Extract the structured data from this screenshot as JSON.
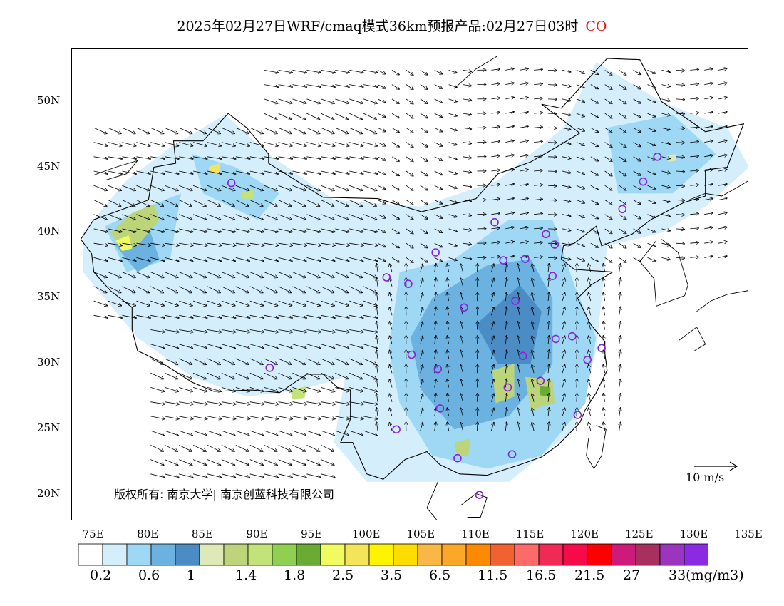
{
  "title": {
    "text": "2025年02月27日WRF/cmaq模式36km预报产品:02月27日03时",
    "species": "CO",
    "species_color": "#e02020"
  },
  "map": {
    "lon_range": [
      73,
      135
    ],
    "lat_range": [
      18,
      54
    ],
    "lat_labels": [
      "50N",
      "45N",
      "40N",
      "35N",
      "30N",
      "25N",
      "20N"
    ],
    "lat_values": [
      50,
      45,
      40,
      35,
      30,
      25,
      20
    ],
    "lon_labels": [
      "75E",
      "80E",
      "85E",
      "90E",
      "95E",
      "100E",
      "105E",
      "110E",
      "115E",
      "120E",
      "125E",
      "130E",
      "135E"
    ],
    "lon_values": [
      75,
      80,
      85,
      90,
      95,
      100,
      105,
      110,
      115,
      120,
      125,
      130,
      135
    ]
  },
  "reference_vector": {
    "label": "10 m/s"
  },
  "copyright": "版权所有: 南京大学| 南京创蓝科技有限公司",
  "colorbar": {
    "colors": [
      "#ffffff",
      "#d5eefb",
      "#9fd8f5",
      "#6bb2e0",
      "#4a8cc3",
      "#dde9b7",
      "#bcd57a",
      "#c3e27a",
      "#8fcf52",
      "#6aab34",
      "#f1fb5f",
      "#f4e45a",
      "#fff400",
      "#fddc00",
      "#f9b746",
      "#fba82a",
      "#fb8a00",
      "#f0622f",
      "#fd6a6a",
      "#f02955",
      "#f50a4a",
      "#fa0000",
      "#cc1b7a",
      "#a7305e",
      "#9b35c0",
      "#8a2be2"
    ],
    "labels": [
      "0.2",
      "0.6",
      "1",
      "1.4",
      "1.8",
      "2.5",
      "3.5",
      "6.5",
      "11.5",
      "16.5",
      "21.5",
      "27",
      "33(mg/m3)"
    ]
  },
  "stations": [
    [
      87.6,
      43.8
    ],
    [
      91.1,
      29.7
    ],
    [
      101.8,
      36.6
    ],
    [
      103.8,
      36.1
    ],
    [
      106.3,
      38.5
    ],
    [
      111.7,
      40.8
    ],
    [
      112.5,
      37.9
    ],
    [
      114.5,
      38.0
    ],
    [
      116.4,
      39.9
    ],
    [
      117.2,
      39.1
    ],
    [
      117.0,
      36.7
    ],
    [
      113.6,
      34.8
    ],
    [
      108.9,
      34.3
    ],
    [
      104.1,
      30.7
    ],
    [
      106.5,
      29.6
    ],
    [
      106.7,
      26.6
    ],
    [
      102.7,
      25.0
    ],
    [
      108.3,
      22.8
    ],
    [
      113.3,
      23.1
    ],
    [
      110.3,
      20.0
    ],
    [
      112.9,
      28.2
    ],
    [
      114.3,
      30.6
    ],
    [
      115.9,
      28.7
    ],
    [
      117.3,
      31.9
    ],
    [
      118.8,
      32.1
    ],
    [
      120.2,
      30.3
    ],
    [
      121.5,
      31.2
    ],
    [
      119.3,
      26.1
    ],
    [
      123.4,
      41.8
    ],
    [
      125.3,
      43.9
    ],
    [
      126.6,
      45.8
    ]
  ]
}
